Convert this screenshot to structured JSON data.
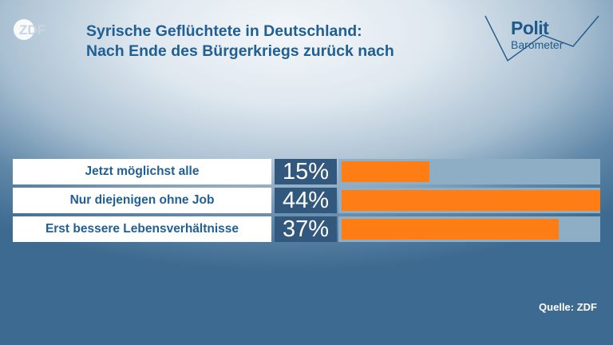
{
  "header": {
    "title_line1": "Syrische Geflüchtete in Deutschland:",
    "title_line2": "Nach Ende des Bürgerkriegs zurück nach",
    "logo_left": "ZDF",
    "logo_right_line1": "Polit",
    "logo_right_line2": "Barometer"
  },
  "colors": {
    "bar": "#fe7d14",
    "percent_box": "#33587d",
    "track": "#8eaec6",
    "title": "#1f5f94"
  },
  "chart_data": {
    "type": "bar",
    "orientation": "horizontal",
    "title": "Syrische Geflüchtete in Deutschland: Nach Ende des Bürgerkriegs zurück nach",
    "categories": [
      "Jetzt möglichst alle",
      "Nur diejenigen ohne Job",
      "Erst bessere Lebensverhältnisse"
    ],
    "values": [
      15,
      44,
      37
    ],
    "value_labels": [
      "15%",
      "44%",
      "37%"
    ],
    "unit": "%",
    "xlim": [
      0,
      44
    ],
    "grid": false,
    "legend": "none"
  },
  "footer": {
    "source": "Quelle: ZDF"
  }
}
